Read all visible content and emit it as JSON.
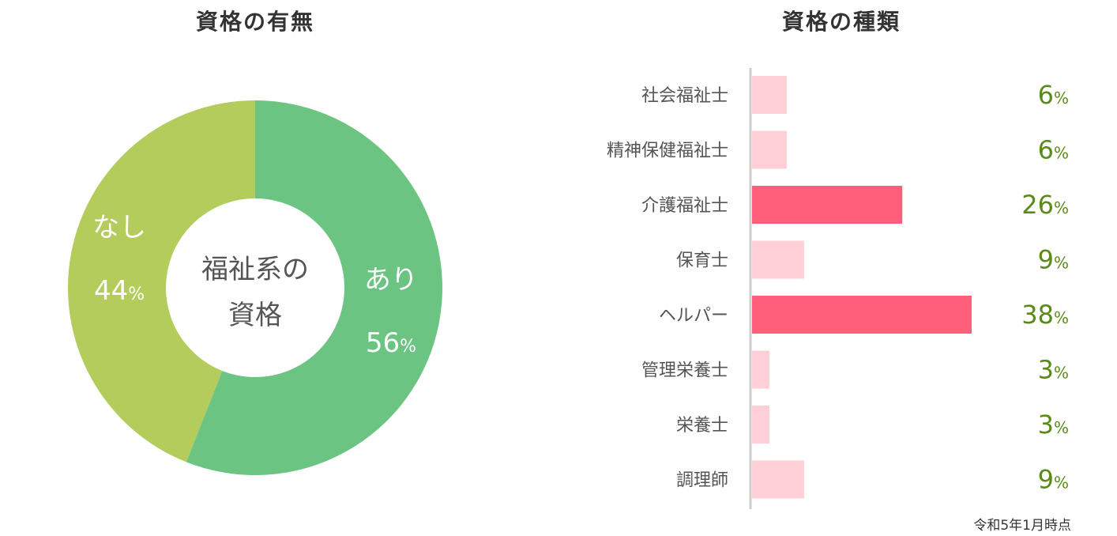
{
  "chart_data": [
    {
      "type": "pie",
      "title": "資格の有無",
      "center_label": [
        "福祉系の",
        "資格"
      ],
      "slices": [
        {
          "label": "あり",
          "value": 56,
          "color": "#6cc483"
        },
        {
          "label": "なし",
          "value": 44,
          "color": "#b3cc5c"
        }
      ],
      "unit": "%"
    },
    {
      "type": "bar",
      "orientation": "horizontal",
      "title": "資格の種類",
      "categories": [
        "社会福祉士",
        "精神保健福祉士",
        "介護福祉士",
        "保育士",
        "ヘルパー",
        "管理栄養士",
        "栄養士",
        "調理師"
      ],
      "values": [
        6,
        6,
        26,
        9,
        38,
        3,
        3,
        9
      ],
      "unit": "%",
      "colors": {
        "highlight": "#ff5f7a",
        "normal": "#ffcfd8",
        "value_text": "#5a8a1a"
      },
      "highlighted": [
        "介護福祉士",
        "ヘルパー"
      ],
      "xlim": [
        0,
        38
      ]
    }
  ],
  "footnote": "令和5年1月時点"
}
